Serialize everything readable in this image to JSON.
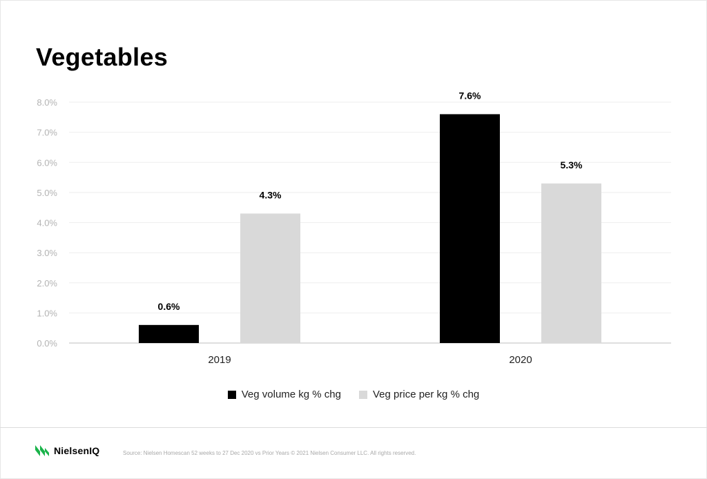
{
  "page": {
    "title": "Vegetables",
    "brand": "NielsenIQ",
    "source": "Source: Nielsen Homescan 52 weeks to 27 Dec 2020 vs Prior Years © 2021 Nielsen Consumer LLC. All rights reserved."
  },
  "colors": {
    "volume": "#000000",
    "price": "#d9d9d9",
    "grid": "#eeeeee",
    "axis": "#bdbdbd",
    "tick_text": "#b3b3b3",
    "brand_green": "#1ab34a"
  },
  "chart_data": {
    "type": "bar",
    "title": "Vegetables",
    "xlabel": "",
    "ylabel": "",
    "categories": [
      "2019",
      "2020"
    ],
    "series": [
      {
        "name": "Veg volume kg % chg",
        "values": [
          0.6,
          7.6
        ],
        "labels": [
          "0.6%",
          "7.6%"
        ]
      },
      {
        "name": "Veg price per kg % chg",
        "values": [
          4.3,
          5.3
        ],
        "labels": [
          "4.3%",
          "5.3%"
        ]
      }
    ],
    "ylim": [
      0,
      8
    ],
    "yticks": [
      "0.0%",
      "1.0%",
      "2.0%",
      "3.0%",
      "4.0%",
      "5.0%",
      "6.0%",
      "7.0%",
      "8.0%"
    ],
    "grid": true,
    "legend_position": "bottom"
  }
}
